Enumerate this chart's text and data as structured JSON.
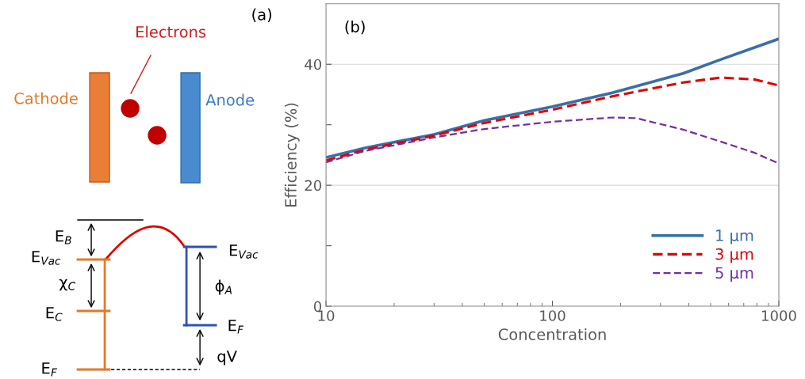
{
  "chart_data": [
    {
      "type": "other",
      "title": "(a)",
      "annotations": [
        "Electrons",
        "Cathode",
        "Anode",
        "E$_{B}$",
        "E$_{Vac}$",
        "χ$_{C}$",
        "E$_{C}$",
        "E$_{F}$",
        "E$_{Vac}$",
        "ϕ$_{A}$",
        "E$_{F}$",
        "qV"
      ]
    },
    {
      "type": "line",
      "xlabel": "Concentration",
      "ylabel": "Efficiency (%)",
      "log": "x",
      "xlim": [
        10,
        1000
      ],
      "xticks": [
        10,
        100,
        1000
      ],
      "ylim": [
        0,
        50
      ],
      "yticks": [
        0,
        {
          "value": 10,
          "label": null
        },
        20,
        {
          "value": 30,
          "label": null
        },
        40
      ],
      "grid": "y",
      "legend": "bottom right",
      "annotations": [
        "(b)"
      ],
      "series": [
        {
          "name": "1 μm",
          "color": "#3a6ea8",
          "line_style": "solid",
          "x": [
            10,
            15,
            30,
            50,
            100,
            184,
            378,
            555,
            1000
          ],
          "values": [
            24.6,
            26.2,
            28.4,
            30.7,
            33.0,
            35.3,
            38.5,
            40.8,
            44.2
          ]
        },
        {
          "name": "3 μm",
          "color": "#e00000",
          "line_style": "dashed",
          "x": [
            10,
            15,
            30,
            50,
            100,
            184,
            378,
            555,
            777,
            1000
          ],
          "values": [
            24.1,
            25.9,
            28.2,
            30.3,
            32.5,
            34.7,
            37.0,
            37.8,
            37.5,
            36.5
          ]
        },
        {
          "name": "5 μm",
          "color": "#7030a0",
          "line_style": "dashed",
          "x": [
            10,
            15,
            30,
            50,
            100,
            184,
            234,
            378,
            555,
            777,
            1000
          ],
          "values": [
            23.8,
            25.7,
            27.9,
            29.3,
            30.5,
            31.2,
            31.1,
            29.2,
            27.2,
            25.4,
            23.6
          ]
        }
      ]
    }
  ]
}
